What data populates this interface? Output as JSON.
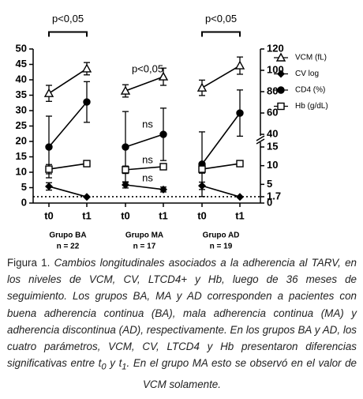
{
  "chart_data": {
    "type": "line",
    "categories": [
      "t0",
      "t1",
      "t0",
      "t1",
      "t0",
      "t1"
    ],
    "groups": [
      {
        "label": "Grupo BA",
        "n": "n = 22"
      },
      {
        "label": "Grupo MA",
        "n": "n = 17"
      },
      {
        "label": "Grupo AD",
        "n": "n = 19"
      }
    ],
    "ylim": [
      0,
      50
    ],
    "yticks": [
      0,
      5,
      10,
      15,
      20,
      25,
      30,
      35,
      40,
      45,
      50
    ],
    "y2lim": [
      0,
      120
    ],
    "y2_break": [
      15,
      40
    ],
    "y2ticks": [
      0,
      1.7,
      5,
      10,
      15,
      40,
      60,
      80,
      100,
      120
    ],
    "reference_line": {
      "axis": "y2",
      "value": 1.7,
      "style": "dotted"
    },
    "legend": "right",
    "series": [
      {
        "name": "VCM (fL)",
        "marker": "triangle-open",
        "color": "#000000",
        "values": [
          35.6,
          43.6,
          36.4,
          41,
          37.4,
          44.6
        ],
        "errors": [
          2.6,
          2,
          2,
          2.8,
          2.5,
          2.8
        ]
      },
      {
        "name": "CV log",
        "marker": "diamond",
        "color": "#000000",
        "values": [
          5.4,
          2,
          5.9,
          4.4,
          5.6,
          2
        ],
        "errors": [
          1.2,
          null,
          1,
          0.8,
          1.2,
          null
        ]
      },
      {
        "name": "CD4 (%)",
        "marker": "circle",
        "color": "#000000",
        "values": [
          18.2,
          32.8,
          18.2,
          22.3,
          12.6,
          29.2
        ],
        "errors": [
          10,
          6.6,
          11.5,
          8.5,
          10.5,
          7.5
        ]
      },
      {
        "name": "Hb (g/dL)",
        "marker": "square-open",
        "color": "#000000",
        "values": [
          11,
          12.8,
          10.8,
          11.8,
          11,
          12.8
        ],
        "errors": [
          1.5,
          0.8,
          1.2,
          1,
          1.3,
          0.8
        ]
      }
    ],
    "annotations": [
      {
        "text": "p<0,05",
        "between": [
          0,
          1
        ],
        "y": 55.5,
        "bracket": true
      },
      {
        "text": "p<0,05",
        "between": [
          2,
          3
        ],
        "y": 43.3,
        "bracket": false
      },
      {
        "text": "ns",
        "between": [
          2,
          3
        ],
        "y": 25.4,
        "bracket": false
      },
      {
        "text": "ns",
        "between": [
          2,
          3
        ],
        "y": 13.8,
        "bracket": false
      },
      {
        "text": "ns",
        "between": [
          2,
          3
        ],
        "y": 7.9,
        "bracket": false
      },
      {
        "text": "p<0,05",
        "between": [
          4,
          5
        ],
        "y": 55.5,
        "bracket": true
      }
    ]
  },
  "caption": {
    "label": "Figura 1.",
    "segments": [
      "Cambios longitudinales asociados a la adherencia al TARV, en los niveles de VCM, CV, LTCD4+ y Hb, luego de 36 meses de seguimiento. Los grupos BA, MA y AD corresponden a pacientes con buena adherencia continua (BA), mala adherencia continua (MA) y adherencia discontinua (AD), respectivamente. En los grupos BA y AD, los cuatro parámetros, VCM, CV, LTCD4 y Hb presentaron diferencias significativas entre ",
      "t",
      "0",
      " y ",
      "t",
      "1",
      ". En el grupo MA esto se observó en el valor de VCM solamente."
    ]
  }
}
